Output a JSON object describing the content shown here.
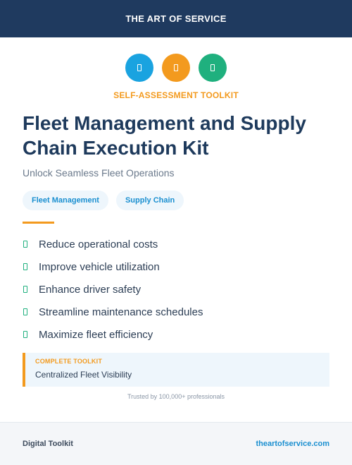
{
  "header": {
    "brand": "THE ART OF SERVICE"
  },
  "icons": [
    {
      "name": "document-icon",
      "color": "#1aa3e0"
    },
    {
      "name": "document-icon",
      "color": "#f39a1e"
    },
    {
      "name": "document-icon",
      "color": "#1fb07e"
    }
  ],
  "hero": {
    "kicker": "SELF-ASSESSMENT TOOLKIT",
    "title": "Fleet Management and Supply Chain Execution Kit",
    "subtitle": "Unlock Seamless Fleet Operations"
  },
  "tags": [
    "Fleet Management",
    "Supply Chain"
  ],
  "features": [
    "Reduce operational costs",
    "Improve vehicle utilization",
    "Enhance driver safety",
    "Streamline maintenance schedules",
    "Maximize fleet efficiency"
  ],
  "callout": {
    "kicker": "COMPLETE TOOLKIT",
    "text": "Centralized Fleet Visibility"
  },
  "trusted": "Trusted by 100,000+ professionals",
  "footer": {
    "left": "Digital Toolkit",
    "right": "theartofservice.com"
  },
  "colors": {
    "navy": "#1f3a5f",
    "orange": "#f39a1e",
    "blue": "#1aa3e0",
    "green": "#1fb07e"
  }
}
